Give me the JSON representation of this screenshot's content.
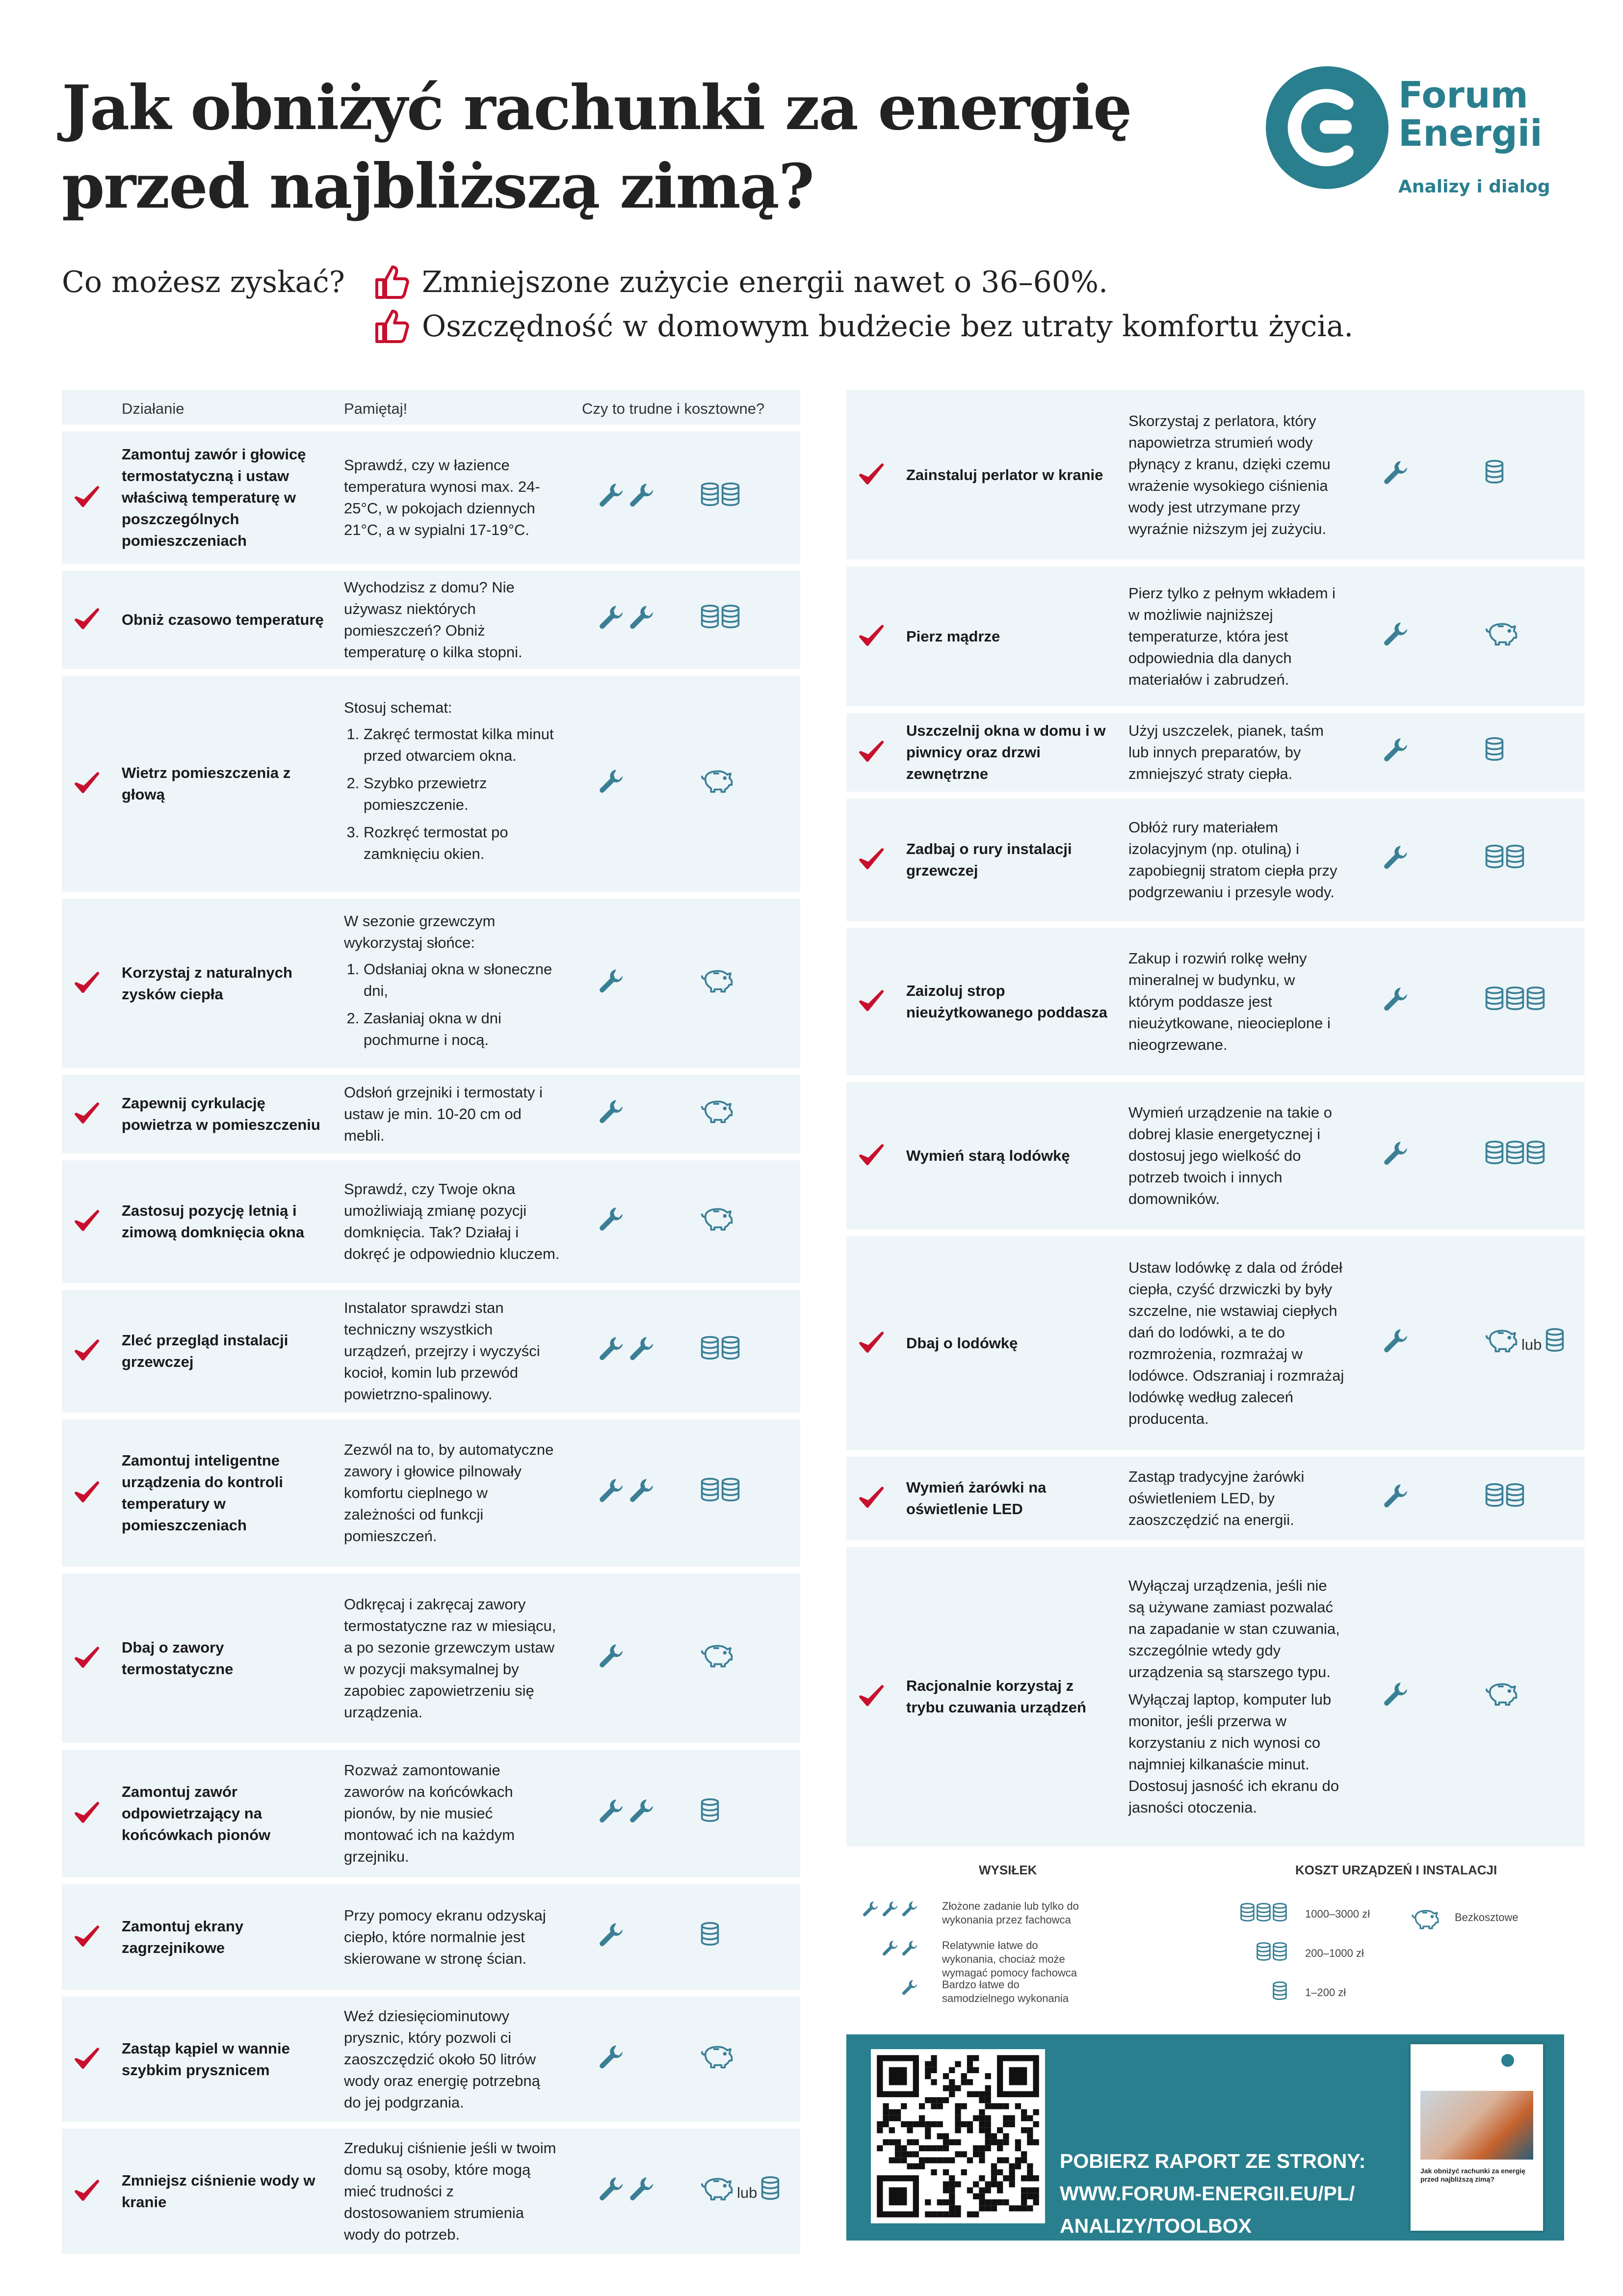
{
  "title": {
    "line1": "Jak obniżyć rachunki za energię",
    "line2": "przed najbliższą zimą?"
  },
  "logo": {
    "line1": "Forum",
    "line2": "Energii",
    "tagline": "Analizy i dialog"
  },
  "gains": {
    "label": "Co możesz zyskać?",
    "items": [
      "Zmniejszone zużycie energii nawet o 36–60%.",
      "Oszczędność w domowym budżecie bez utraty komfortu życia."
    ]
  },
  "table_header": {
    "action": "Działanie",
    "remember": "Pamiętaj!",
    "hard": "Czy to trudne i kosztowne?"
  },
  "left_rows": [
    {
      "action": "Zamontuj zawór i głowicę termostatyczną i ustaw właściwą temperaturę w poszczególnych pomieszczeniach",
      "remember": "Sprawdź, czy w łazience temperatura wynosi max. 24-25°C, w pokojach dziennych 21°C, a w sypialni 17-19°C.",
      "effort": 2,
      "cost": 2
    },
    {
      "action": "Obniż czasowo temperaturę",
      "remember": "Wychodzisz z domu? Nie używasz niektórych pomieszczeń? Obniż temperaturę o kilka stopni.",
      "effort": 2,
      "cost": 2
    },
    {
      "action": "Wietrz pomieszczenia z głową",
      "remember": "Stosuj schemat:",
      "steps": [
        "Zakręć termostat kilka minut przed otwarciem okna.",
        "Szybko przewietrz pomieszczenie.",
        "Rozkręć termostat po zamknięciu okien."
      ],
      "effort": 1,
      "cost": 0
    },
    {
      "action": "Korzystaj z naturalnych zysków ciepła",
      "remember": "W sezonie grzewczym wykorzystaj słońce:",
      "steps": [
        "Odsłaniaj okna w słoneczne dni,",
        "Zasłaniaj okna w dni pochmurne i nocą."
      ],
      "effort": 1,
      "cost": 0
    },
    {
      "action": "Zapewnij cyrkulację powietrza w pomieszczeniu",
      "remember": "Odsłoń grzejniki i termostaty i ustaw je min. 10-20 cm od mebli.",
      "effort": 1,
      "cost": 0
    },
    {
      "action": "Zastosuj pozycję letnią i zimową domknięcia okna",
      "remember": "Sprawdź, czy Twoje okna umożliwiają zmianę pozycji domknięcia. Tak? Działaj i dokręć je odpowiednio kluczem.",
      "effort": 1,
      "cost": 0
    },
    {
      "action": "Zleć przegląd instalacji grzewczej",
      "remember": "Instalator sprawdzi stan techniczny wszystkich urządzeń, przejrzy i wyczyści kocioł, komin lub przewód powietrzno-spalinowy.",
      "effort": 2,
      "cost": 2
    },
    {
      "action": "Zamontuj inteligentne urządzenia do kontroli temperatury w pomieszczeniach",
      "remember": "Zezwól na to, by automatyczne zawory i głowice pilnowały komfortu cieplnego w zależności od funkcji pomieszczeń.",
      "effort": 2,
      "cost": 2
    },
    {
      "action": "Dbaj o zawory termostatyczne",
      "remember": "Odkręcaj i zakręcaj zawory termostatyczne raz w miesiącu, a po sezonie grzewczym ustaw w pozycji maksymalnej by zapobiec zapowietrzeniu się urządzenia.",
      "effort": 1,
      "cost": 0
    },
    {
      "action": "Zamontuj zawór odpowietrzający na końcówkach pionów",
      "remember": "Rozważ zamontowanie zaworów na końcówkach pionów, by nie musieć montować ich na każdym grzejniku.",
      "effort": 2,
      "cost": 1
    },
    {
      "action": "Zamontuj ekrany zagrzejnikowe",
      "remember": "Przy pomocy ekranu odzyskaj ciepło, które normalnie jest skierowane w stronę ścian.",
      "effort": 1,
      "cost": 1
    },
    {
      "action": "Zastąp kąpiel w wannie szybkim prysznicem",
      "remember": "Weź dziesięciominutowy prysznic, który pozwoli ci zaoszczędzić około 50 litrów wody oraz energię potrzebną do jej podgrzania.",
      "effort": 1,
      "cost": 0
    },
    {
      "action": "Zmniejsz ciśnienie wody w kranie",
      "remember": "Zredukuj ciśnienie jeśli w twoim domu są osoby, które mogą mieć trudności z dostosowaniem strumienia wody do potrzeb.",
      "effort": 2,
      "cost": "0|1"
    }
  ],
  "right_rows": [
    {
      "action": "Zainstaluj perlator w kranie",
      "remember": "Skorzystaj z perlatora, który napowietrza strumień wody płynący z kranu, dzięki czemu wrażenie wysokiego ciśnienia wody jest utrzymane przy wyraźnie niższym jej zużyciu.",
      "effort": 1,
      "cost": 1
    },
    {
      "action": "Pierz mądrze",
      "remember": "Pierz tylko z pełnym wkładem i w możliwie najniższej temperaturze, która jest odpowiednia dla danych materiałów i zabrudzeń.",
      "effort": 1,
      "cost": 0
    },
    {
      "action": "Uszczelnij okna w domu i w piwnicy oraz drzwi zewnętrzne",
      "remember": "Użyj uszczelek, pianek, taśm lub innych preparatów, by zmniejszyć straty ciepła.",
      "effort": 1,
      "cost": 1
    },
    {
      "action": "Zadbaj o rury instalacji grzewczej",
      "remember": "Obłóż rury materiałem izolacyjnym (np. otuliną) i zapobiegnij stratom ciepła przy podgrzewaniu i przesyle wody.",
      "effort": 1,
      "cost": 2
    },
    {
      "action": "Zaizoluj strop nieużytkowanego poddasza",
      "remember": "Zakup i rozwiń rolkę wełny mineralnej w budynku, w którym poddasze jest nieużytkowane, nieocieplone i nieogrzewane.",
      "effort": 1,
      "cost": 3
    },
    {
      "action": "Wymień starą lodówkę",
      "remember": "Wymień urządzenie na takie o dobrej klasie energetycznej i dostosuj jego wielkość do potrzeb twoich i innych domowników.",
      "effort": 1,
      "cost": 3
    },
    {
      "action": "Dbaj o lodówkę",
      "remember": "Ustaw lodówkę z dala od źródeł ciepła, czyść drzwiczki by były szczelne, nie wstawiaj ciepłych dań do lodówki, a te do rozmrożenia, rozmrażaj w lodówce. Odszraniaj i rozmrażaj lodówkę według zaleceń producenta.",
      "effort": 1,
      "cost": "0|1"
    },
    {
      "action": "Wymień żarówki na oświetlenie LED",
      "remember": "Zastąp tradycyjne żarówki oświetleniem LED, by zaoszczędzić na energii.",
      "effort": 1,
      "cost": 2
    },
    {
      "action": "Racjonalnie korzystaj z trybu czuwania urządzeń",
      "remember": "Wyłączaj urządzenia, jeśli nie są używane zamiast pozwalać na zapadanie w stan czuwania, szczególnie wtedy gdy urządzenia są starszego typu.",
      "remember2": "Wyłączaj laptop, komputer lub monitor, jeśli przerwa w korzystaniu z nich wynosi co najmniej kilkanaście minut. Dostosuj jasność ich ekranu do jasności otoczenia.",
      "effort": 1,
      "cost": 0
    }
  ],
  "or_word": "lub",
  "legend": {
    "effort_title": "WYSIŁEK",
    "cost_title": "KOSZT URZĄDZEŃ I INSTALACJI",
    "effort_items": [
      {
        "level": 3,
        "text": "Złożone zadanie lub tylko do wykonania przez fachowca"
      },
      {
        "level": 2,
        "text": "Relatywnie łatwe do wykonania, chociaż może wymagać pomocy fachowca"
      },
      {
        "level": 1,
        "text": "Bardzo łatwe do samodzielnego wykonania"
      }
    ],
    "cost_items": [
      {
        "level": 3,
        "text": "1000–3000 zł"
      },
      {
        "level": 2,
        "text": "200–1000 zł"
      },
      {
        "level": 1,
        "text": "1–200 zł"
      }
    ],
    "free_text": "Bezkosztowe"
  },
  "banner": {
    "line1": "POBIERZ RAPORT ZE STRONY:",
    "line2": "WWW.FORUM-ENERGII.EU/PL/",
    "line3": "ANALIZY/TOOLBOX"
  },
  "report_cover": {
    "title": "Jak obniżyć rachunki za energię przed najbliższą zimą?"
  },
  "colors": {
    "accent": "#2a7f8e",
    "check": "#c8102e",
    "row_bg": "#eef5f8",
    "icon": "#3a7f96"
  }
}
